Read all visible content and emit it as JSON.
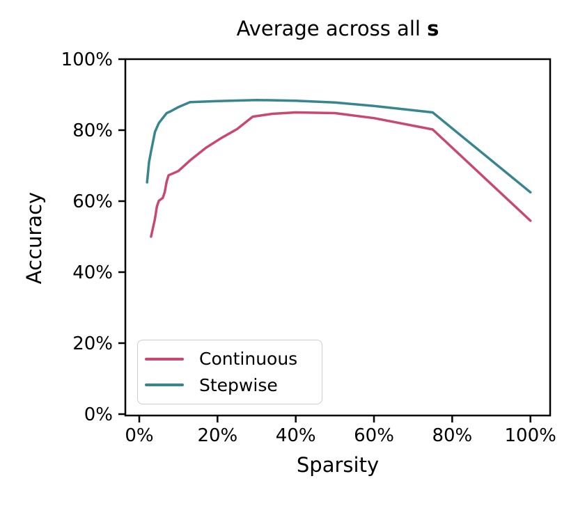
{
  "title": {
    "prefix": "Average across all ",
    "bold_suffix": "s"
  },
  "axes": {
    "x_label": "Sparsity",
    "y_label": "Accuracy",
    "x_tick_labels": [
      "0%",
      "20%",
      "40%",
      "60%",
      "80%",
      "100%"
    ],
    "y_tick_labels": [
      "0%",
      "20%",
      "40%",
      "60%",
      "80%",
      "100%"
    ]
  },
  "colors": {
    "continuous": "#c9486f",
    "stepwise": "#37858e",
    "axis": "#000000",
    "legend_border": "#cccccc"
  },
  "legend": {
    "items": [
      {
        "label": "Continuous",
        "color": "#c9486f"
      },
      {
        "label": "Stepwise",
        "color": "#37858e"
      }
    ]
  },
  "chart_data": {
    "type": "line",
    "title": "Average across all s",
    "xlabel": "Sparsity",
    "ylabel": "Accuracy",
    "xlim": [
      -3,
      105
    ],
    "ylim": [
      0,
      100
    ],
    "x_ticks": [
      0,
      20,
      40,
      60,
      80,
      100
    ],
    "y_ticks": [
      0,
      20,
      40,
      60,
      80,
      100
    ],
    "grid": false,
    "legend_position": "lower left",
    "series": [
      {
        "name": "Continuous",
        "color": "#c9486f",
        "points": [
          [
            3,
            50.0
          ],
          [
            4,
            55.0
          ],
          [
            4.5,
            58.5
          ],
          [
            5,
            60.1
          ],
          [
            6,
            60.9
          ],
          [
            6.5,
            62.5
          ],
          [
            7,
            65.5
          ],
          [
            7.5,
            67.3
          ],
          [
            9,
            68.0
          ],
          [
            10,
            68.5
          ],
          [
            13,
            71.5
          ],
          [
            17,
            75.0
          ],
          [
            21,
            77.8
          ],
          [
            25,
            80.3
          ],
          [
            29,
            83.8
          ],
          [
            34,
            84.6
          ],
          [
            40,
            85.0
          ],
          [
            50,
            84.8
          ],
          [
            60,
            83.4
          ],
          [
            75,
            80.2
          ],
          [
            100,
            54.5
          ]
        ]
      },
      {
        "name": "Stepwise",
        "color": "#37858e",
        "points": [
          [
            2,
            65.3
          ],
          [
            2.5,
            71.0
          ],
          [
            3,
            74.0
          ],
          [
            4,
            79.5
          ],
          [
            5,
            82.0
          ],
          [
            7,
            84.8
          ],
          [
            8,
            85.3
          ],
          [
            10,
            86.5
          ],
          [
            13,
            87.9
          ],
          [
            20,
            88.2
          ],
          [
            30,
            88.5
          ],
          [
            40,
            88.3
          ],
          [
            50,
            87.8
          ],
          [
            60,
            86.8
          ],
          [
            75,
            85.0
          ],
          [
            100,
            62.5
          ]
        ]
      }
    ]
  }
}
